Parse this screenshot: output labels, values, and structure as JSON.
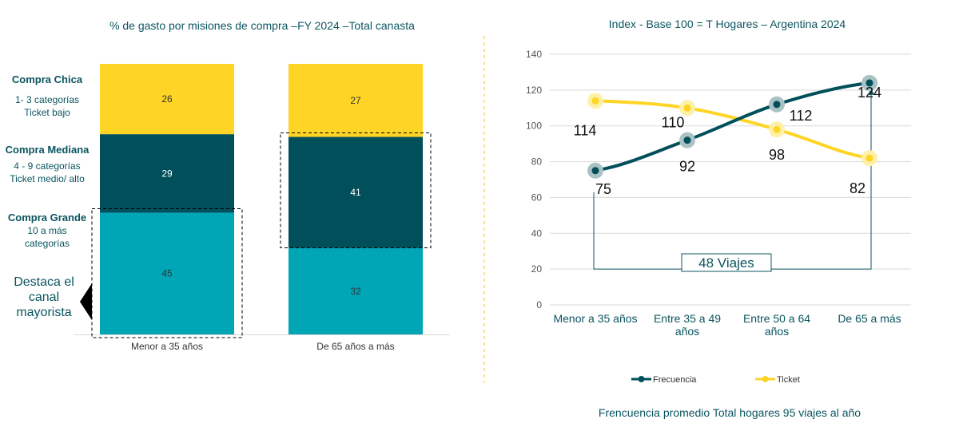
{
  "colors": {
    "yellow": "#FFD525",
    "dark": "#004F5A",
    "teal": "#00A6B5",
    "text": "#0B5560"
  },
  "divider_color": "#F2C230",
  "chart_data": [
    {
      "type": "bar",
      "stacked": true,
      "title": "% de gasto por misiones de compra –FY 2024 –Total canasta",
      "categories": [
        "Menor a 35 años",
        "De 65 años a más"
      ],
      "series": [
        {
          "name": "Compra Grande",
          "values": [
            45,
            32
          ],
          "color": "#00A6B5"
        },
        {
          "name": "Compra Mediana",
          "values": [
            29,
            41
          ],
          "color": "#004F5A"
        },
        {
          "name": "Compra Chica",
          "values": [
            26,
            27
          ],
          "color": "#FFD525"
        }
      ],
      "segment_labels": [
        {
          "title": "Compra Chica",
          "lines": [
            "1- 3 categorías",
            "Ticket bajo"
          ]
        },
        {
          "title": "Compra Mediana",
          "lines": [
            "4 - 9 categorías",
            "Ticket medio/ alto"
          ]
        },
        {
          "title": "Compra Grande",
          "lines": [
            "10 a más",
            "categorías"
          ]
        }
      ],
      "callout": [
        "Destaca el",
        "canal",
        "mayorista"
      ],
      "highlighted": [
        {
          "category": "Menor a 35 años",
          "series": "Compra Grande"
        },
        {
          "category": "De 65 años a más",
          "series": "Compra Mediana"
        }
      ]
    },
    {
      "type": "line",
      "title": "Index -  Base 100 = T Hogares – Argentina 2024",
      "categories": [
        [
          "Menor a 35 años"
        ],
        [
          "Entre 35 a 49",
          "años"
        ],
        [
          "Entre 50 a 64",
          "años"
        ],
        [
          "De 65 a más"
        ]
      ],
      "ylim": [
        0,
        140
      ],
      "yticks": [
        0,
        20,
        40,
        60,
        80,
        100,
        120,
        140
      ],
      "grid": true,
      "series": [
        {
          "name": "Frecuencia",
          "values": [
            75,
            92,
            112,
            124
          ],
          "color": "#004F5A"
        },
        {
          "name": "Ticket",
          "values": [
            114,
            110,
            98,
            82
          ],
          "color": "#FFD525"
        }
      ],
      "annotation": "48 Viajes",
      "legend": "bottom",
      "footnote": "Frencuencia promedio Total hogares 95 viajes al año"
    }
  ]
}
